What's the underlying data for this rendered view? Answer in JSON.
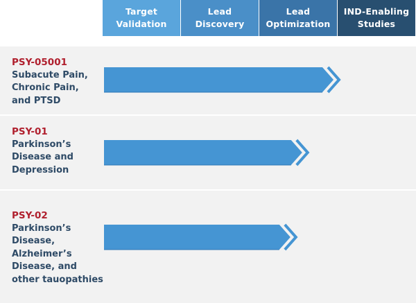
{
  "colors": {
    "header_1": "#5aa5dc",
    "header_2": "#4a8fc8",
    "header_3": "#3a74a8",
    "header_4": "#284f70",
    "row_background": "#f2f2f2",
    "bar_fill": "#4595d3",
    "bar_stroke": "#2f78b6",
    "code_text": "#b0202e",
    "desc_text": "#2e4a66"
  },
  "headers": [
    {
      "label": "Target\nValidation"
    },
    {
      "label": "Lead\nDiscovery"
    },
    {
      "label": "Lead\nOptimization"
    },
    {
      "label": "IND-Enabling\nStudies"
    }
  ],
  "chart_data": {
    "type": "bar",
    "orientation": "horizontal",
    "categories": [
      "PSY-05001",
      "PSY-01",
      "PSY-02"
    ],
    "stages": [
      "Target Validation",
      "Lead Discovery",
      "Lead Optimization",
      "IND-Enabling Studies"
    ],
    "values": [
      3.0,
      2.6,
      2.45
    ],
    "xlim": [
      0,
      4
    ],
    "grid": false,
    "legend": "none"
  },
  "programs": [
    {
      "code": "PSY-05001",
      "description": "Subacute Pain,\nChronic Pain,\nand PTSD"
    },
    {
      "code": "PSY-01",
      "description": "Parkinson’s\nDisease and\nDepression"
    },
    {
      "code": "PSY-02",
      "description": "Parkinson’s\nDisease,\nAlzheimer’s\nDisease, and\nother tauopathies"
    }
  ]
}
